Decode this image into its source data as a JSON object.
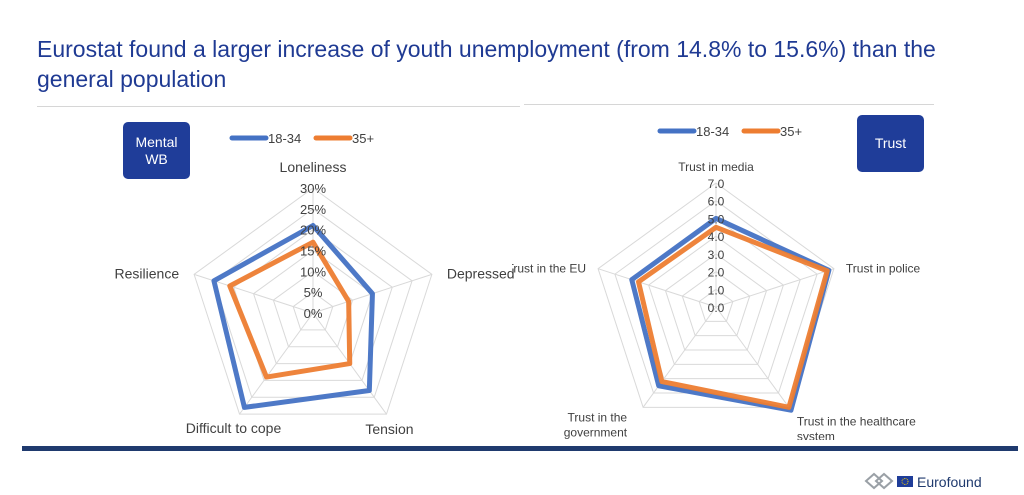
{
  "slide": {
    "title": "Eurostat found a larger increase of youth unemployment (from 14.8% to 15.6%) than the general population"
  },
  "footer": {
    "logo_text": "Eurofound"
  },
  "colors": {
    "series_18_34": "#4472c4",
    "series_35plus": "#ed7d31",
    "badge": "#1f3d99",
    "rule": "#1f3a6e"
  },
  "chart_data": [
    {
      "type": "radar",
      "badge": "Mental WB",
      "axes": [
        "Loneliness",
        "Depressed",
        "Tension",
        "Difficult to cope",
        "Resilience"
      ],
      "tick_labels": [
        "0%",
        "5%",
        "10%",
        "15%",
        "20%",
        "25%",
        "30%"
      ],
      "ticks": [
        0,
        5,
        10,
        15,
        20,
        25,
        30
      ],
      "range": [
        0,
        30
      ],
      "legend_placement": "top",
      "series": [
        {
          "name": "18-34",
          "values": [
            21,
            15,
            23,
            28,
            25
          ]
        },
        {
          "name": "35+",
          "values": [
            17,
            9,
            15,
            19,
            21
          ]
        }
      ]
    },
    {
      "type": "radar",
      "badge": "Trust",
      "axes": [
        "Trust in media",
        "Trust in police",
        "Trust in the healthcare system",
        "Trust in the government",
        "Trust in the EU"
      ],
      "axis_label_lines": [
        [
          "Trust in media"
        ],
        [
          "Trust in police"
        ],
        [
          "Trust in the healthcare",
          "system"
        ],
        [
          "Trust in the",
          "government"
        ],
        [
          "Trust in the EU"
        ]
      ],
      "tick_labels": [
        "0.0",
        "1.0",
        "2.0",
        "3.0",
        "4.0",
        "5.0",
        "6.0",
        "7.0"
      ],
      "ticks": [
        0,
        1,
        2,
        3,
        4,
        5,
        6,
        7
      ],
      "range": [
        0,
        7
      ],
      "legend_placement": "top",
      "series": [
        {
          "name": "18-34",
          "values": [
            5.0,
            6.7,
            7.2,
            5.5,
            5.0
          ]
        },
        {
          "name": "35+",
          "values": [
            4.5,
            6.6,
            7.0,
            5.2,
            4.6
          ]
        }
      ]
    }
  ]
}
